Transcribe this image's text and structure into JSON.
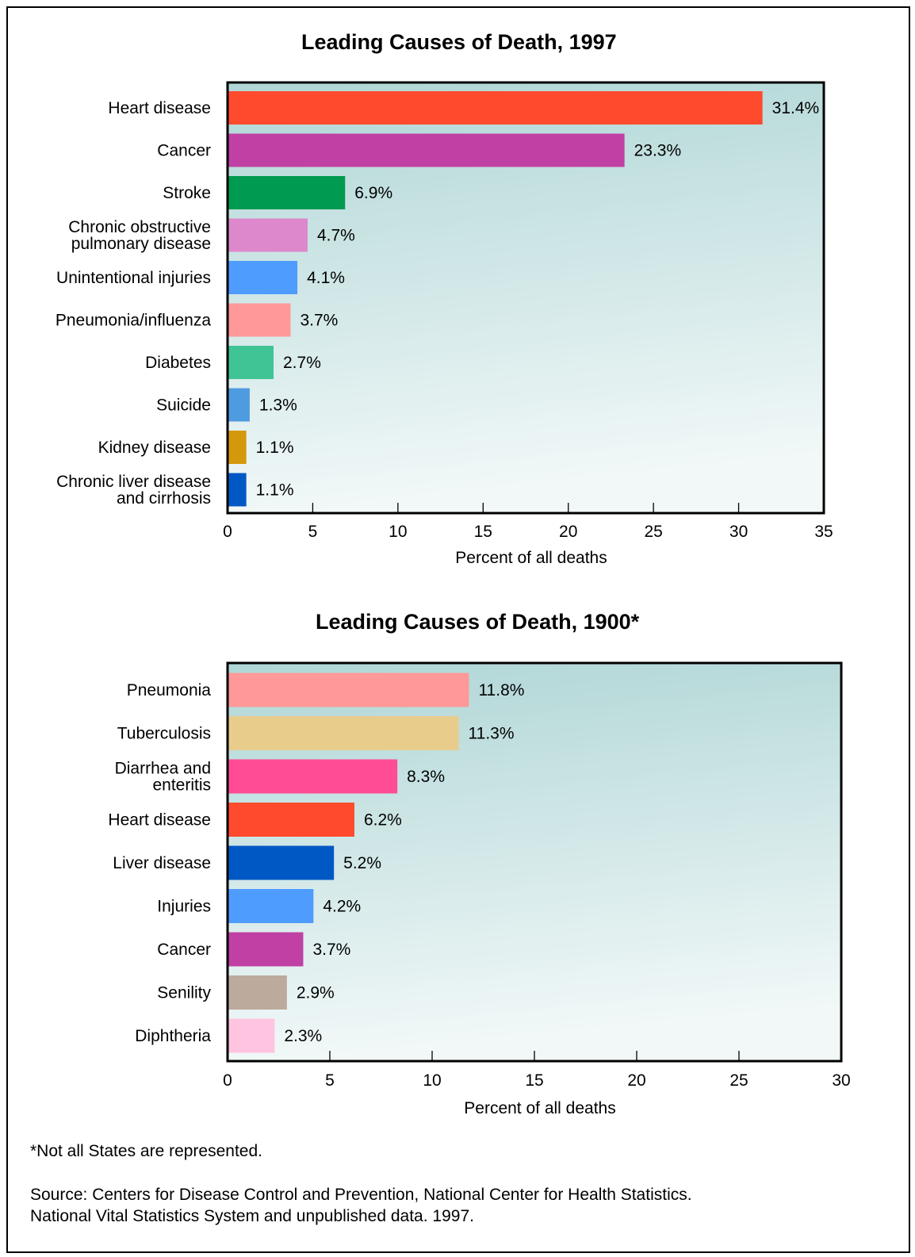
{
  "chart_data": [
    {
      "type": "bar",
      "orientation": "horizontal",
      "title": "Leading Causes of Death, 1997",
      "xlabel": "Percent of all deaths",
      "xlim": [
        0,
        35
      ],
      "xticks": [
        0,
        5,
        10,
        15,
        20,
        25,
        30,
        35
      ],
      "categories": [
        [
          "Heart disease"
        ],
        [
          "Cancer"
        ],
        [
          "Stroke"
        ],
        [
          "Chronic obstructive",
          "pulmonary disease"
        ],
        [
          "Unintentional injuries"
        ],
        [
          "Pneumonia/influenza"
        ],
        [
          "Diabetes"
        ],
        [
          "Suicide"
        ],
        [
          "Kidney disease"
        ],
        [
          "Chronic liver disease",
          "and cirrhosis"
        ]
      ],
      "values": [
        31.4,
        23.3,
        6.9,
        4.7,
        4.1,
        3.7,
        2.7,
        1.3,
        1.1,
        1.1
      ],
      "value_labels": [
        "31.4%",
        "23.3%",
        "6.9%",
        "4.7%",
        "4.1%",
        "3.7%",
        "2.7%",
        "1.3%",
        "1.1%",
        "1.1%"
      ],
      "colors": [
        "#ff4a2e",
        "#c040a4",
        "#009a50",
        "#dd88cc",
        "#4f9cff",
        "#ff9999",
        "#40c496",
        "#4f9be0",
        "#d4980c",
        "#0058c4"
      ]
    },
    {
      "type": "bar",
      "orientation": "horizontal",
      "title": "Leading Causes of Death, 1900*",
      "xlabel": "Percent of all deaths",
      "xlim": [
        0,
        30
      ],
      "xticks": [
        0,
        5,
        10,
        15,
        20,
        25,
        30
      ],
      "categories": [
        [
          "Pneumonia"
        ],
        [
          "Tuberculosis"
        ],
        [
          "Diarrhea and",
          "enteritis"
        ],
        [
          "Heart disease"
        ],
        [
          "Liver disease"
        ],
        [
          "Injuries"
        ],
        [
          "Cancer"
        ],
        [
          "Senility"
        ],
        [
          "Diphtheria"
        ]
      ],
      "values": [
        11.8,
        11.3,
        8.3,
        6.2,
        5.2,
        4.2,
        3.7,
        2.9,
        2.3
      ],
      "value_labels": [
        "11.8%",
        "11.3%",
        "8.3%",
        "6.2%",
        "5.2%",
        "4.2%",
        "3.7%",
        "2.9%",
        "2.3%"
      ],
      "colors": [
        "#ff9999",
        "#e8cc8c",
        "#ff4c94",
        "#ff4a2e",
        "#0058c4",
        "#4f9cff",
        "#c040a4",
        "#bcaa9c",
        "#ffc4e0"
      ]
    }
  ],
  "footnote": "*Not all States are represented.",
  "source_line1": "Source:  Centers for Disease Control and Prevention, National Center for Health Statistics.",
  "source_line2": "National Vital Statistics System and unpublished data. 1997.",
  "plot_background": {
    "top": "#b0d6d6",
    "bottom": "#f2f8f8"
  }
}
